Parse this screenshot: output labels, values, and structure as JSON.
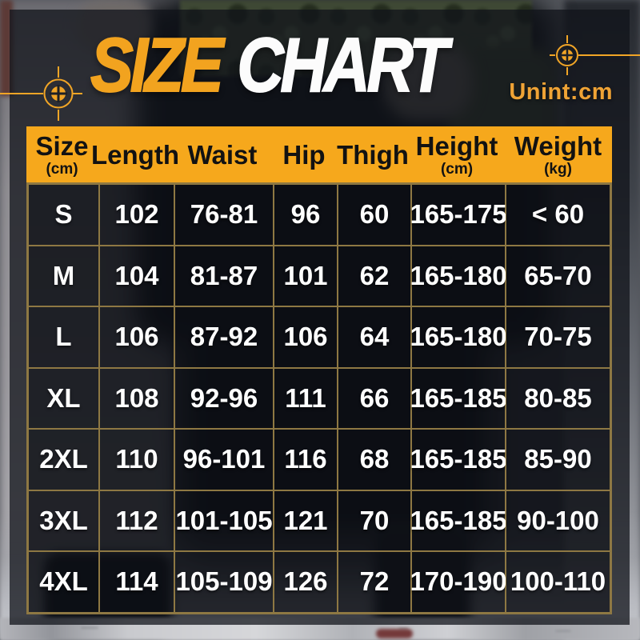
{
  "header": {
    "size_word": "SIZE",
    "chart_word": "CHART",
    "unit_label": "Unint:cm"
  },
  "icons": {
    "left": "crosshair-target-icon",
    "right": "crosshair-target-icon"
  },
  "colors": {
    "accent_orange": "#F2A31F",
    "header_bg": "#F6A81C",
    "grid_gold": "#8E7843",
    "body_text": "#FFFFFF",
    "header_text": "#121212",
    "unit_text": "#EFA335"
  },
  "chart_data": {
    "type": "table",
    "title": "SIZE CHART",
    "unit": "Unint:cm",
    "columns": [
      {
        "label": "Size",
        "sub": "(cm)"
      },
      {
        "label": "Length",
        "sub": ""
      },
      {
        "label": "Waist",
        "sub": ""
      },
      {
        "label": "Hip",
        "sub": ""
      },
      {
        "label": "Thigh",
        "sub": ""
      },
      {
        "label": "Height",
        "sub": "(cm)"
      },
      {
        "label": "Weight",
        "sub": "(kg)"
      }
    ],
    "rows": [
      [
        "S",
        "102",
        "76-81",
        "96",
        "60",
        "165-175",
        "< 60"
      ],
      [
        "M",
        "104",
        "81-87",
        "101",
        "62",
        "165-180",
        "65-70"
      ],
      [
        "L",
        "106",
        "87-92",
        "106",
        "64",
        "165-180",
        "70-75"
      ],
      [
        "XL",
        "108",
        "92-96",
        "111",
        "66",
        "165-185",
        "80-85"
      ],
      [
        "2XL",
        "110",
        "96-101",
        "116",
        "68",
        "165-185",
        "85-90"
      ],
      [
        "3XL",
        "112",
        "101-105",
        "121",
        "70",
        "165-185",
        "90-100"
      ],
      [
        "4XL",
        "114",
        "105-109",
        "126",
        "72",
        "170-190",
        "100-110"
      ]
    ]
  }
}
